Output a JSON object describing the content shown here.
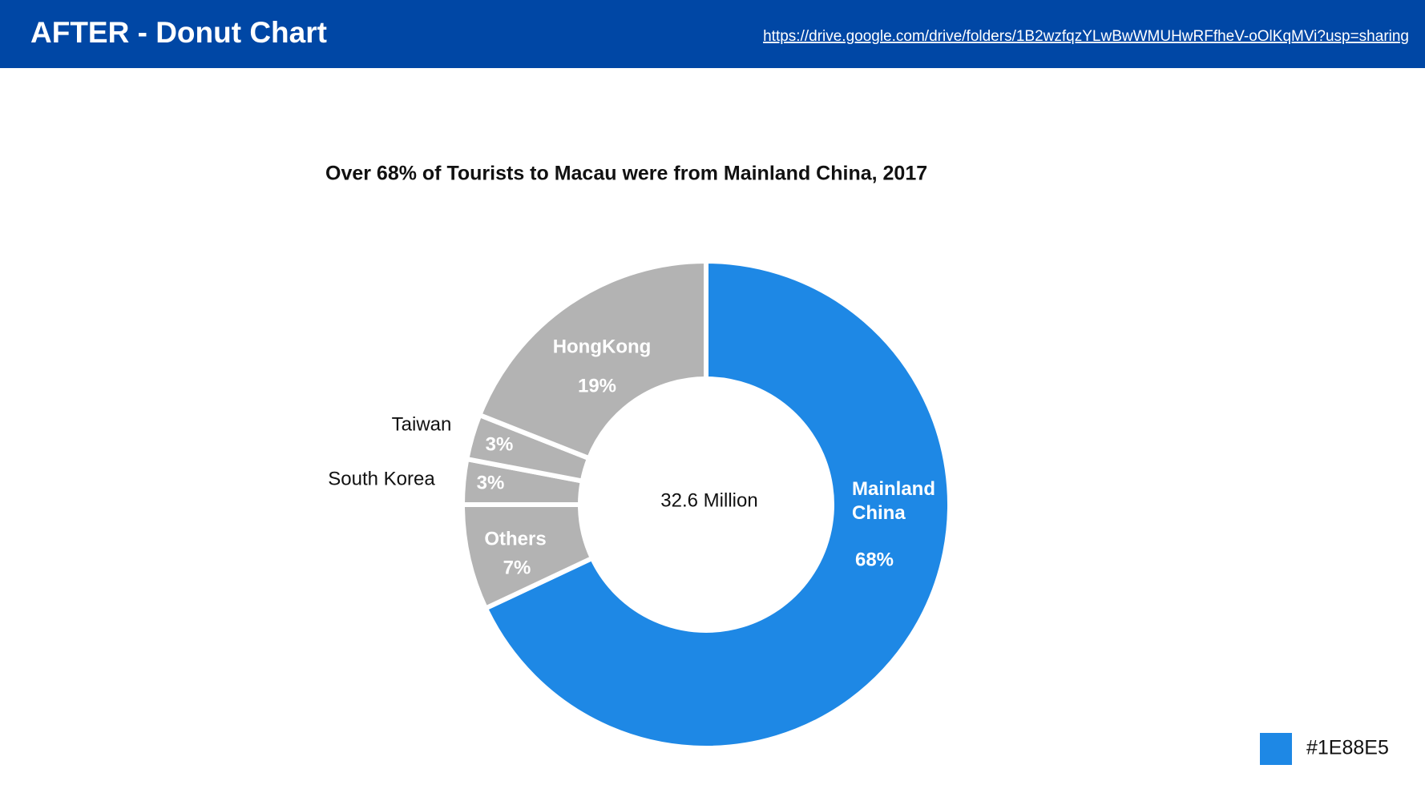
{
  "header": {
    "title": "AFTER - Donut Chart",
    "link": "https://drive.google.com/drive/folders/1B2wzfqzYLwBwWMUHwRFfheV-oOlKqMVi?usp=sharing"
  },
  "chart_data": {
    "type": "pie",
    "title": "Over 68% of Tourists to Macau were from Mainland China, 2017",
    "center_label": "32.6 Million",
    "categories": [
      "Mainland China",
      "Others",
      "South Korea",
      "Taiwan",
      "HongKong"
    ],
    "values": [
      68,
      7,
      3,
      3,
      19
    ],
    "value_labels": [
      "68%",
      "7%",
      "3%",
      "3%",
      "19%"
    ],
    "colors": [
      "#1E88E5",
      "#B3B3B3",
      "#B3B3B3",
      "#B3B3B3",
      "#B3B3B3"
    ]
  },
  "swatch": {
    "color": "#1E88E5"
  }
}
